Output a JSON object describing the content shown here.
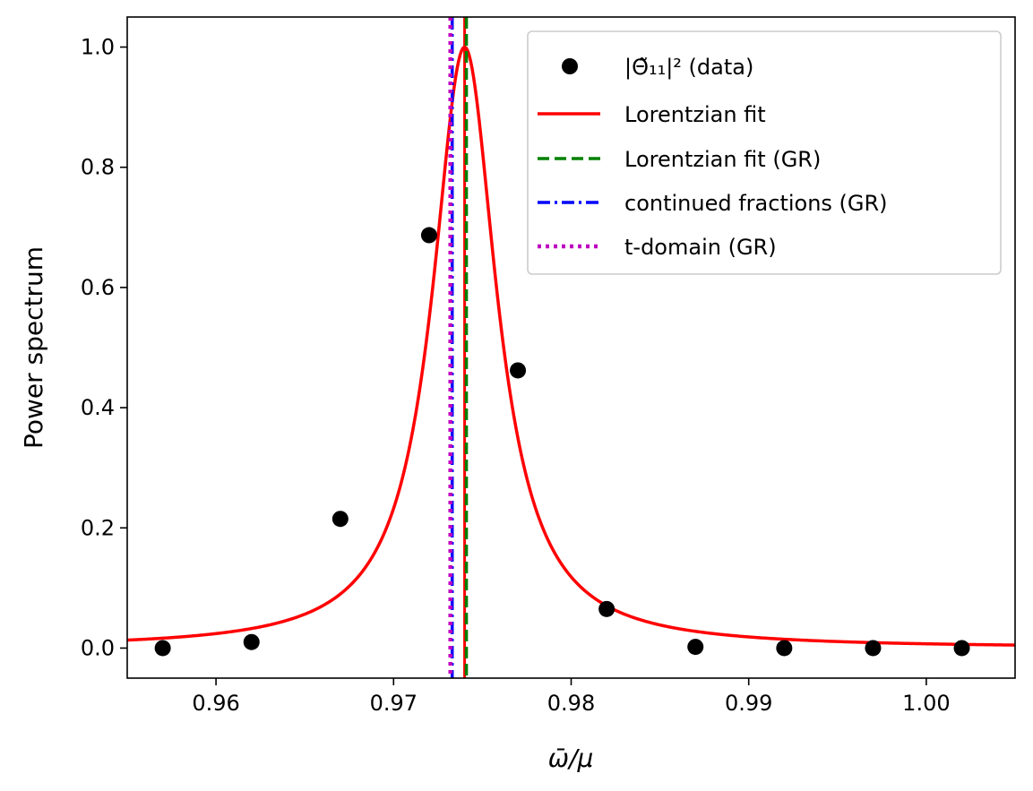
{
  "chart_data": {
    "type": "line",
    "title": "",
    "xlabel": "ω̄/μ",
    "ylabel": "Power spectrum",
    "xlim": [
      0.955,
      1.005
    ],
    "ylim": [
      -0.05,
      1.05
    ],
    "xticks": [
      0.96,
      0.97,
      0.98,
      0.99,
      1.0
    ],
    "xtick_labels": [
      "0.96",
      "0.97",
      "0.98",
      "0.99",
      "1.00"
    ],
    "yticks": [
      0.0,
      0.2,
      0.4,
      0.6,
      0.8,
      1.0
    ],
    "ytick_labels": [
      "0.0",
      "0.2",
      "0.4",
      "0.6",
      "0.8",
      "1.0"
    ],
    "legend_position": "top-right",
    "series": [
      {
        "name": "|Θ̃₁₁|² (data)",
        "kind": "scatter",
        "color": "#000000",
        "x": [
          0.957,
          0.962,
          0.967,
          0.972,
          0.977,
          0.982,
          0.987,
          0.992,
          0.997,
          1.002
        ],
        "y": [
          0.0,
          0.01,
          0.215,
          0.687,
          0.462,
          0.065,
          0.002,
          0.0,
          0.0,
          0.0
        ]
      },
      {
        "name": "Lorentzian fit",
        "kind": "lorentzian",
        "color": "#ff0000",
        "center": 0.974,
        "half_width": 0.0022,
        "amplitude": 1.0
      },
      {
        "name": "Lorentzian fit (GR)",
        "kind": "vline",
        "style": "dashed",
        "color": "#008000",
        "x": 0.9741
      },
      {
        "name": "continued fractions (GR)",
        "kind": "vline",
        "style": "dashdot",
        "color": "#0000ff",
        "x": 0.9733
      },
      {
        "name": "t-domain (GR)",
        "kind": "vline",
        "style": "dotted",
        "color": "#bf00bf",
        "x": 0.9732
      }
    ],
    "extra_vlines": [
      {
        "x": 0.974,
        "color": "#ff0000",
        "style": "solid"
      }
    ]
  }
}
